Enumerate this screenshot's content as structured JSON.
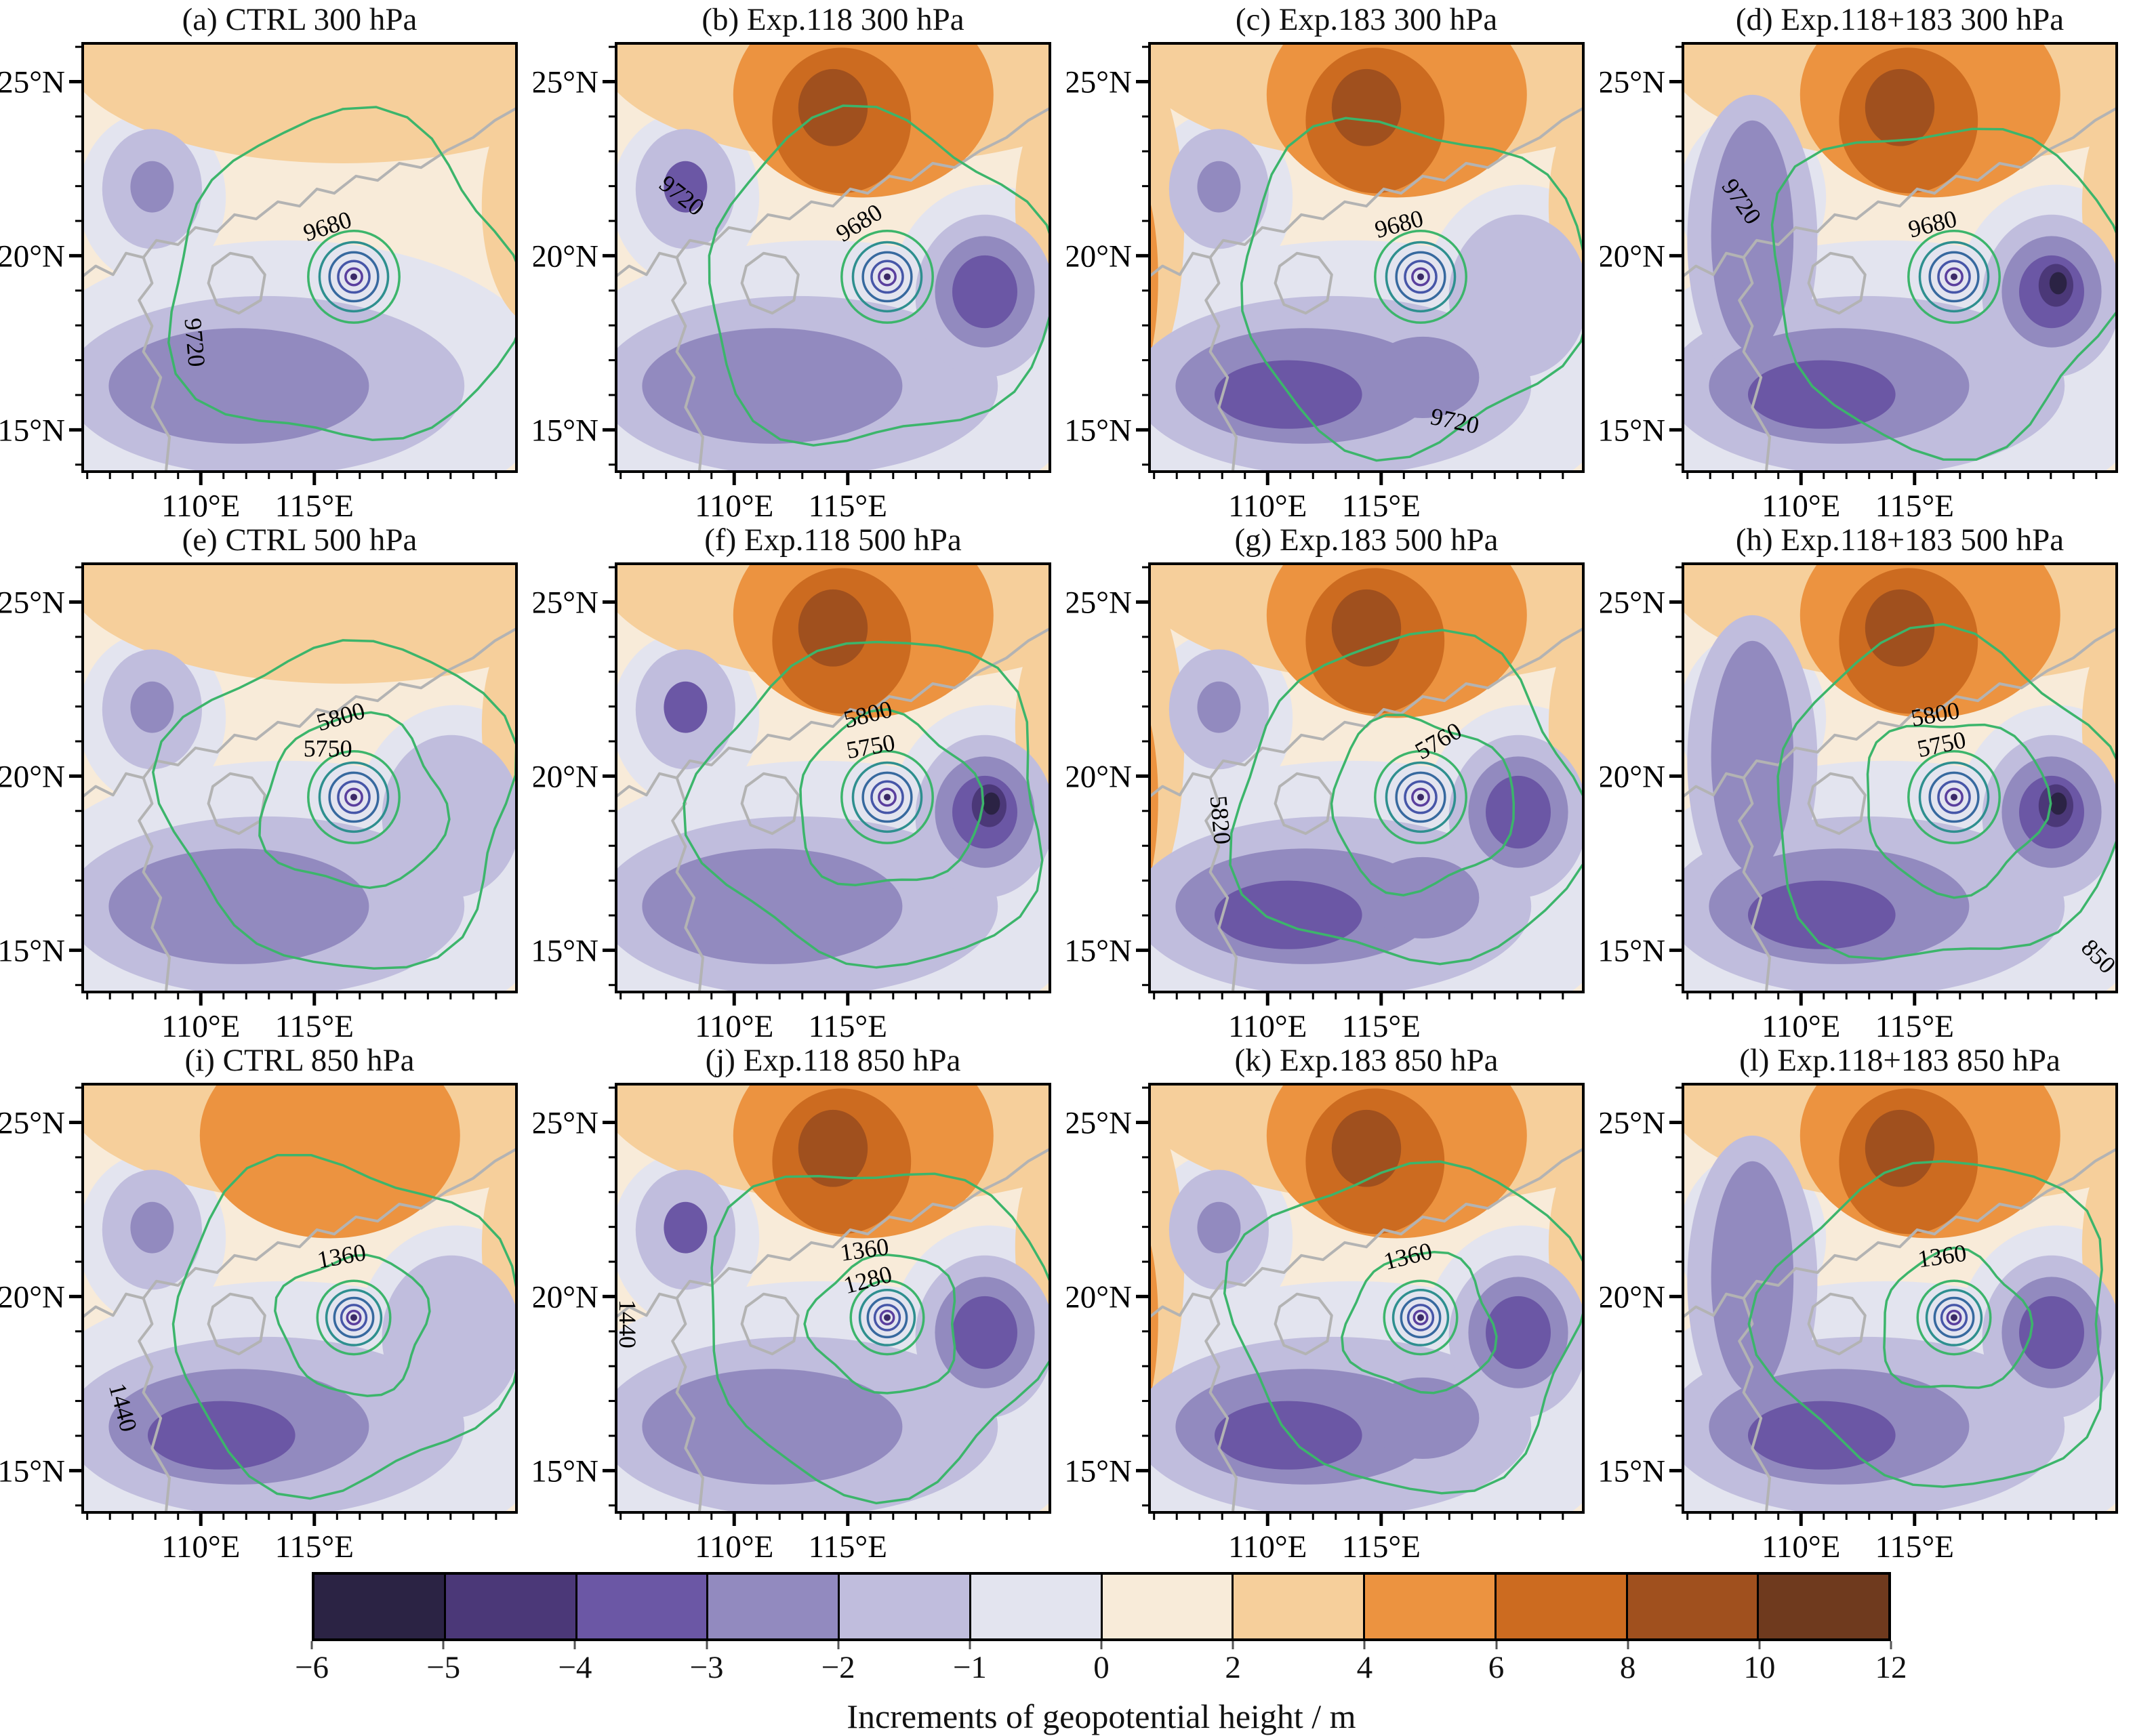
{
  "figure": {
    "caption": "Increments of geopotential height / m"
  },
  "axes": {
    "x_tick_labels": [
      "110°E",
      "115°E"
    ],
    "y_tick_labels": [
      "25°N",
      "20°N",
      "15°N"
    ],
    "lon_range": [
      104.8,
      123.9
    ],
    "lat_range": [
      13.8,
      26.1
    ],
    "x_major_lons": [
      110,
      115
    ],
    "y_major_lats": [
      25,
      20,
      15
    ]
  },
  "colorbar": {
    "label": "Increments of geopotential height / m",
    "tick_labels": [
      "−6",
      "−5",
      "−4",
      "−3",
      "−2",
      "−1",
      "0",
      "2",
      "4",
      "6",
      "8",
      "10",
      "12"
    ],
    "segment_colors": [
      "#2b2344",
      "#4b3878",
      "#6b57a5",
      "#928abf",
      "#c0bddd",
      "#e3e4ef",
      "#f8ebd9",
      "#f6cf9b",
      "#ec9340",
      "#cc6b20",
      "#a0501e",
      "#6f3a1e"
    ]
  },
  "contour_colors": {
    "outer_loop": "#3cb56b",
    "vortex_rings": [
      "#3cb56b",
      "#2e8f8f",
      "#37699f",
      "#4656a8",
      "#5a3f9e"
    ],
    "ring_center": "#3b2a66",
    "coastline": "#b3b3b3"
  },
  "chart_data": {
    "type": "heatmap",
    "title": "Increments of geopotential height / m",
    "units": "m",
    "value_levels": [
      -6,
      -5,
      -4,
      -3,
      -2,
      -1,
      0,
      2,
      4,
      6,
      8,
      10,
      12
    ],
    "palette": [
      "#2b2344",
      "#4b3878",
      "#6b57a5",
      "#928abf",
      "#c0bddd",
      "#e3e4ef",
      "#f8ebd9",
      "#f6cf9b",
      "#ec9340",
      "#cc6b20",
      "#a0501e",
      "#6f3a1e"
    ],
    "pressure_levels_hPa": [
      300,
      500,
      850
    ],
    "experiments": [
      "CTRL",
      "Exp.118",
      "Exp.183",
      "Exp.118+183"
    ],
    "panels": [
      {
        "id": "a",
        "title": "(a) CTRL 300 hPa",
        "experiment": "CTRL",
        "level_hPa": 300,
        "contour_labels": [
          {
            "text": "9680",
            "x": 0.57,
            "y": 0.445,
            "rot": -18
          },
          {
            "text": "9720",
            "x": 0.24,
            "y": 0.7,
            "rot": 85
          }
        ],
        "field": {
          "orange": 1,
          "orangeLeft": false,
          "south": 1,
          "se": 0,
          "leftBand": false,
          "ulDark": false
        }
      },
      {
        "id": "b",
        "title": "(b) Exp.118 300 hPa",
        "experiment": "Exp.118",
        "level_hPa": 300,
        "contour_labels": [
          {
            "text": "9680",
            "x": 0.57,
            "y": 0.435,
            "rot": -32
          },
          {
            "text": "9720",
            "x": 0.14,
            "y": 0.37,
            "rot": 38
          }
        ],
        "field": {
          "orange": 3,
          "orangeLeft": false,
          "south": 1,
          "se": 2,
          "leftBand": false,
          "ulDark": true
        }
      },
      {
        "id": "c",
        "title": "(c) Exp.183 300 hPa",
        "experiment": "Exp.183",
        "level_hPa": 300,
        "contour_labels": [
          {
            "text": "9680",
            "x": 0.58,
            "y": 0.44,
            "rot": -15
          },
          {
            "text": "9720",
            "x": 0.7,
            "y": 0.9,
            "rot": 12
          }
        ],
        "field": {
          "orange": 3,
          "orangeLeft": true,
          "south": 3,
          "se": 1,
          "leftBand": false,
          "ulDark": false
        }
      },
      {
        "id": "d",
        "title": "(d) Exp.118+183 300 hPa",
        "experiment": "Exp.118+183",
        "level_hPa": 300,
        "contour_labels": [
          {
            "text": "9680",
            "x": 0.58,
            "y": 0.44,
            "rot": -14
          },
          {
            "text": "9720",
            "x": 0.12,
            "y": 0.38,
            "rot": 55
          }
        ],
        "field": {
          "orange": 3,
          "orangeLeft": false,
          "south": 2,
          "se": 3,
          "leftBand": true,
          "ulDark": false
        }
      },
      {
        "id": "e",
        "title": "(e) CTRL 500 hPa",
        "experiment": "CTRL",
        "level_hPa": 500,
        "contour_labels": [
          {
            "text": "5800",
            "x": 0.6,
            "y": 0.375,
            "rot": -16
          },
          {
            "text": "5750",
            "x": 0.565,
            "y": 0.45,
            "rot": 0
          }
        ],
        "field": {
          "orange": 1,
          "orangeLeft": false,
          "south": 1,
          "se": 1,
          "leftBand": false,
          "ulDark": false
        }
      },
      {
        "id": "f",
        "title": "(f) Exp.118 500 hPa",
        "experiment": "Exp.118",
        "level_hPa": 500,
        "contour_labels": [
          {
            "text": "5800",
            "x": 0.585,
            "y": 0.37,
            "rot": -14
          },
          {
            "text": "5750",
            "x": 0.59,
            "y": 0.445,
            "rot": -10
          }
        ],
        "field": {
          "orange": 3,
          "orangeLeft": false,
          "south": 1,
          "se": 3,
          "leftBand": false,
          "ulDark": true
        }
      },
      {
        "id": "g",
        "title": "(g) Exp.183 500 hPa",
        "experiment": "Exp.183",
        "level_hPa": 500,
        "contour_labels": [
          {
            "text": "5760",
            "x": 0.675,
            "y": 0.43,
            "rot": -30
          },
          {
            "text": "5820",
            "x": 0.145,
            "y": 0.6,
            "rot": 85
          }
        ],
        "field": {
          "orange": 3,
          "orangeLeft": true,
          "south": 3,
          "se": 2,
          "leftBand": false,
          "ulDark": false
        }
      },
      {
        "id": "h",
        "title": "(h) Exp.118+183 500 hPa",
        "experiment": "Exp.118+183",
        "level_hPa": 500,
        "contour_labels": [
          {
            "text": "5800",
            "x": 0.585,
            "y": 0.37,
            "rot": -10
          },
          {
            "text": "5750",
            "x": 0.6,
            "y": 0.44,
            "rot": -12
          },
          {
            "text": "850",
            "x": 0.945,
            "y": 0.93,
            "rot": 45
          }
        ],
        "field": {
          "orange": 3,
          "orangeLeft": false,
          "south": 2,
          "se": 3,
          "leftBand": true,
          "ulDark": false
        }
      },
      {
        "id": "i",
        "title": "(i) CTRL 850 hPa",
        "experiment": "CTRL",
        "level_hPa": 850,
        "contour_labels": [
          {
            "text": "1360",
            "x": 0.6,
            "y": 0.42,
            "rot": -10
          },
          {
            "text": "1440",
            "x": 0.075,
            "y": 0.76,
            "rot": 75
          }
        ],
        "field": {
          "orange": 2,
          "orangeLeft": false,
          "south": 2,
          "se": 1,
          "leftBand": false,
          "ulDark": false
        }
      },
      {
        "id": "j",
        "title": "(j) Exp.118 850 hPa",
        "experiment": "Exp.118",
        "level_hPa": 850,
        "contour_labels": [
          {
            "text": "1360",
            "x": 0.575,
            "y": 0.405,
            "rot": -8
          },
          {
            "text": "1280",
            "x": 0.585,
            "y": 0.475,
            "rot": -15
          },
          {
            "text": "1440",
            "x": 0.008,
            "y": 0.56,
            "rot": 90
          }
        ],
        "field": {
          "orange": 3,
          "orangeLeft": false,
          "south": 1,
          "se": 2,
          "leftBand": false,
          "ulDark": true
        }
      },
      {
        "id": "k",
        "title": "(k) Exp.183 850 hPa",
        "experiment": "Exp.183",
        "level_hPa": 850,
        "contour_labels": [
          {
            "text": "1360",
            "x": 0.6,
            "y": 0.42,
            "rot": -14
          }
        ],
        "field": {
          "orange": 3,
          "orangeLeft": true,
          "south": 3,
          "se": 2,
          "leftBand": false,
          "ulDark": false
        }
      },
      {
        "id": "l",
        "title": "(l) Exp.118+183 850 hPa",
        "experiment": "Exp.118+183",
        "level_hPa": 850,
        "contour_labels": [
          {
            "text": "1360",
            "x": 0.6,
            "y": 0.42,
            "rot": -8
          }
        ],
        "field": {
          "orange": 3,
          "orangeLeft": false,
          "south": 2,
          "se": 2,
          "leftBand": true,
          "ulDark": false
        }
      }
    ]
  }
}
